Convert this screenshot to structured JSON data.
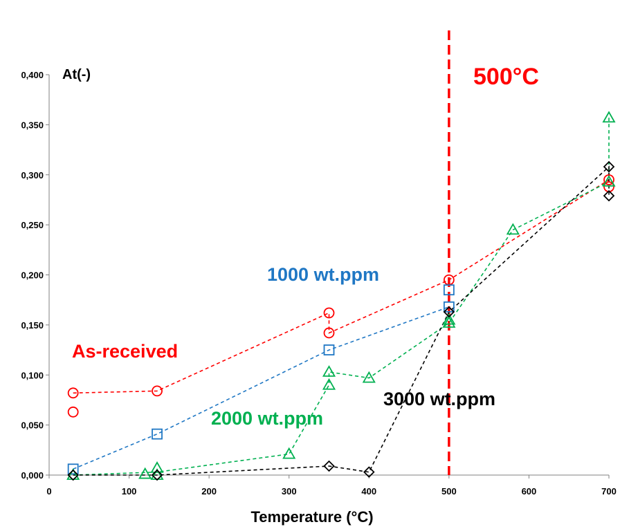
{
  "chart_data": {
    "type": "scatter",
    "title": "",
    "xlabel": "Temperature (°C)",
    "ylabel": "At(-)",
    "xlim": [
      0,
      700
    ],
    "ylim": [
      0,
      0.4
    ],
    "xticks": [
      0,
      100,
      200,
      300,
      400,
      500,
      600,
      700
    ],
    "xtick_labels": [
      "0",
      "100",
      "200",
      "300",
      "400",
      "500",
      "600",
      "700"
    ],
    "yticks": [
      0,
      0.05,
      0.1,
      0.15,
      0.2,
      0.25,
      0.3,
      0.35,
      0.4
    ],
    "ytick_labels": [
      "0,000",
      "0,050",
      "0,100",
      "0,150",
      "0,200",
      "0,250",
      "0,300",
      "0,350",
      "0,400"
    ],
    "grid": false,
    "series": [
      {
        "name": "As-received",
        "color": "#ff0000",
        "marker": "circle",
        "points": [
          [
            30,
            0.082
          ],
          [
            30,
            0.063
          ],
          [
            135,
            0.084
          ],
          [
            350,
            0.162
          ],
          [
            350,
            0.142
          ],
          [
            500,
            0.195
          ],
          [
            700,
            0.295
          ],
          [
            700,
            0.288
          ]
        ],
        "line": [
          [
            30,
            0.082
          ],
          [
            135,
            0.084
          ],
          [
            350,
            0.162
          ],
          [
            350,
            0.142
          ],
          [
            500,
            0.195
          ],
          [
            700,
            0.295
          ]
        ]
      },
      {
        "name": "1000 wt.ppm",
        "color": "#1f77c4",
        "marker": "square",
        "points": [
          [
            30,
            0.006
          ],
          [
            135,
            0.041
          ],
          [
            350,
            0.125
          ],
          [
            500,
            0.185
          ],
          [
            500,
            0.168
          ]
        ],
        "line": [
          [
            30,
            0.006
          ],
          [
            135,
            0.041
          ],
          [
            350,
            0.125
          ],
          [
            500,
            0.168
          ]
        ]
      },
      {
        "name": "2000 wt.ppm",
        "color": "#00b050",
        "marker": "triangle",
        "points": [
          [
            30,
            0.0
          ],
          [
            120,
            0.001
          ],
          [
            135,
            0.007
          ],
          [
            135,
            0.0
          ],
          [
            300,
            0.021
          ],
          [
            350,
            0.103
          ],
          [
            350,
            0.09
          ],
          [
            400,
            0.097
          ],
          [
            500,
            0.155
          ],
          [
            500,
            0.152
          ],
          [
            580,
            0.245
          ],
          [
            700,
            0.357
          ],
          [
            700,
            0.293
          ]
        ],
        "line": [
          [
            30,
            0.0
          ],
          [
            135,
            0.003
          ],
          [
            300,
            0.021
          ],
          [
            350,
            0.09
          ],
          [
            350,
            0.103
          ],
          [
            400,
            0.097
          ],
          [
            500,
            0.152
          ],
          [
            580,
            0.245
          ],
          [
            700,
            0.293
          ],
          [
            700,
            0.357
          ]
        ]
      },
      {
        "name": "3000 wt.ppm",
        "color": "#000000",
        "marker": "diamond",
        "points": [
          [
            30,
            0.0
          ],
          [
            135,
            0.0
          ],
          [
            350,
            0.009
          ],
          [
            400,
            0.003
          ],
          [
            500,
            0.163
          ],
          [
            700,
            0.308
          ],
          [
            700,
            0.279
          ]
        ],
        "line": [
          [
            30,
            0.0
          ],
          [
            135,
            0.0
          ],
          [
            350,
            0.009
          ],
          [
            400,
            0.003
          ],
          [
            500,
            0.163
          ],
          [
            700,
            0.308
          ],
          [
            700,
            0.279
          ]
        ]
      }
    ],
    "annotations": [
      {
        "text": "500°C",
        "color": "#ff0000",
        "vline_x": 500
      }
    ]
  }
}
